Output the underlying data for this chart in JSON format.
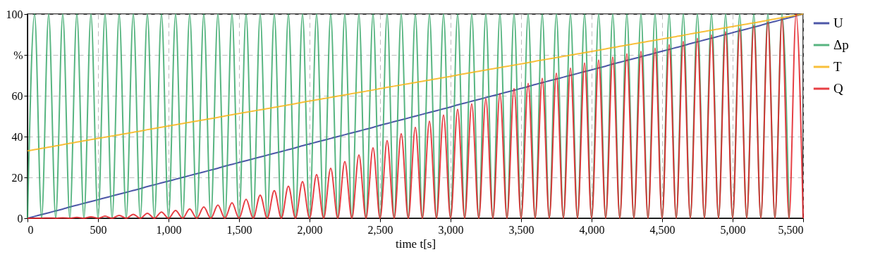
{
  "chart_data": {
    "type": "line",
    "xlabel": "time t[s]",
    "legend": "right",
    "grid": true,
    "x": [
      0,
      50,
      100,
      150,
      200,
      250,
      300,
      350,
      400,
      450,
      500,
      550,
      600,
      650,
      700,
      750,
      800,
      850,
      900,
      950,
      1000,
      1050,
      1100,
      1150,
      1200,
      1250,
      1300,
      1350,
      1400,
      1450,
      1500,
      1550,
      1600,
      1650,
      1700,
      1750,
      1800,
      1850,
      1900,
      1950,
      2000,
      2050,
      2100,
      2150,
      2200,
      2250,
      2300,
      2350,
      2400,
      2450,
      2500,
      2550,
      2600,
      2650,
      2700,
      2750,
      2800,
      2850,
      2900,
      2950,
      3000,
      3050,
      3100,
      3150,
      3200,
      3250,
      3300,
      3350,
      3400,
      3450,
      3500,
      3550,
      3600,
      3650,
      3700,
      3750,
      3800,
      3850,
      3900,
      3950,
      4000,
      4050,
      4100,
      4150,
      4200,
      4250,
      4300,
      4350,
      4400,
      4450,
      4500,
      4550,
      4600,
      4650,
      4700,
      4750,
      4800,
      4850,
      4900,
      4950,
      5000,
      5050,
      5100,
      5150,
      5200,
      5250,
      5300,
      5350,
      5400,
      5450,
      5500
    ],
    "series": [
      {
        "name": "U",
        "color": "#2e3a98",
        "values": [
          0,
          0.9,
          1.8,
          2.7,
          3.6,
          4.5,
          5.5,
          6.4,
          7.3,
          8.2,
          9.1,
          10,
          10.9,
          11.8,
          12.7,
          13.6,
          14.5,
          15.5,
          16.4,
          17.3,
          18.2,
          19.1,
          20,
          20.9,
          21.8,
          22.7,
          23.6,
          24.5,
          25.5,
          26.4,
          27.3,
          28.2,
          29.1,
          30,
          30.9,
          31.8,
          32.7,
          33.6,
          34.5,
          35.5,
          36.4,
          37.3,
          38.2,
          39.1,
          40,
          40.9,
          41.8,
          42.7,
          43.6,
          44.5,
          45.5,
          46.4,
          47.3,
          48.2,
          49.1,
          50,
          50.9,
          51.8,
          52.7,
          53.6,
          54.5,
          55.5,
          56.4,
          57.3,
          58.2,
          59.1,
          60,
          60.9,
          61.8,
          62.7,
          63.6,
          64.5,
          65.5,
          66.4,
          67.3,
          68.2,
          69.1,
          70,
          70.9,
          71.8,
          72.7,
          73.6,
          74.5,
          75.5,
          76.4,
          77.3,
          78.2,
          79.1,
          80,
          80.9,
          81.8,
          82.7,
          83.6,
          84.5,
          85.5,
          86.4,
          87.3,
          88.2,
          89.1,
          90,
          90.9,
          91.8,
          92.7,
          93.6,
          94.5,
          95.5,
          96.4,
          97.3,
          98.2,
          99.1,
          100
        ]
      },
      {
        "name": "Δp",
        "color": "#3aa86b",
        "values": [
          0,
          100,
          0,
          100,
          0,
          100,
          0,
          100,
          0,
          100,
          0,
          100,
          0,
          100,
          0,
          100,
          0,
          100,
          0,
          100,
          0,
          100,
          0,
          100,
          0,
          100,
          0,
          100,
          0,
          100,
          0,
          100,
          0,
          100,
          0,
          100,
          0,
          100,
          0,
          100,
          0,
          100,
          0,
          100,
          0,
          100,
          0,
          100,
          0,
          100,
          0,
          100,
          0,
          100,
          0,
          100,
          0,
          100,
          0,
          100,
          0,
          100,
          0,
          100,
          0,
          100,
          0,
          100,
          0,
          100,
          0,
          100,
          0,
          100,
          0,
          100,
          0,
          100,
          0,
          100,
          0,
          100,
          0,
          100,
          0,
          100,
          0,
          100,
          0,
          100,
          0,
          100,
          0,
          100,
          0,
          100,
          0,
          100,
          0,
          100,
          0,
          100,
          0,
          100,
          0,
          100,
          0,
          100,
          0,
          null,
          null
        ]
      },
      {
        "name": "T",
        "color": "#f7b519",
        "values": [
          33,
          33.6,
          34.2,
          34.8,
          35.4,
          36,
          36.7,
          37.3,
          37.9,
          38.5,
          39.1,
          39.7,
          40.3,
          40.9,
          41.5,
          42.1,
          42.7,
          43.4,
          44,
          44.6,
          45.2,
          45.8,
          46.4,
          47,
          47.6,
          48.2,
          48.8,
          49.4,
          50.1,
          50.7,
          51.3,
          51.9,
          52.5,
          53.1,
          53.7,
          54.3,
          54.9,
          55.5,
          56.1,
          56.8,
          57.4,
          58,
          58.6,
          59.2,
          59.8,
          60.4,
          61,
          61.6,
          62.2,
          62.8,
          63.5,
          64.1,
          64.7,
          65.3,
          65.9,
          66.5,
          67.1,
          67.7,
          68.3,
          68.9,
          69.5,
          70.2,
          70.8,
          71.4,
          72,
          72.6,
          73.2,
          73.8,
          74.4,
          75,
          75.6,
          76.2,
          76.9,
          77.5,
          78.1,
          78.7,
          79.3,
          79.9,
          80.5,
          81.1,
          81.7,
          82.3,
          82.9,
          83.6,
          84.2,
          84.8,
          85.4,
          86,
          86.6,
          87.2,
          87.8,
          88.4,
          89,
          89.6,
          90.3,
          90.9,
          91.5,
          92.1,
          92.7,
          93.3,
          93.9,
          94.5,
          95.1,
          95.7,
          96.3,
          97,
          97.6,
          98.2,
          98.8,
          99.4,
          100
        ]
      },
      {
        "name": "Q",
        "color": "#e31e24",
        "values": [
          0,
          0,
          0,
          0.1,
          0,
          0.2,
          0,
          0.4,
          0,
          0.7,
          0,
          1,
          0,
          1.4,
          0,
          1.9,
          0,
          2.4,
          0,
          3,
          0,
          3.8,
          0,
          4.6,
          0,
          5.5,
          0,
          6.5,
          0,
          7.6,
          0,
          9.3,
          0,
          11.3,
          0,
          13.5,
          0,
          15.7,
          0,
          17.9,
          0,
          21.4,
          0,
          24.5,
          0,
          27.8,
          0,
          31,
          0,
          34.5,
          0,
          38,
          0,
          41.4,
          0,
          44.5,
          0,
          47.5,
          0,
          50.5,
          0,
          53.4,
          0,
          56,
          0,
          58.5,
          0,
          61,
          0,
          63.5,
          0,
          66,
          0,
          68.5,
          0,
          71,
          0,
          73.5,
          0,
          76,
          0,
          77.5,
          0,
          79,
          0,
          80.5,
          0,
          81.7,
          0,
          83.3,
          0,
          85,
          0,
          86.6,
          0,
          88.2,
          0,
          89.8,
          0,
          91.4,
          0,
          93,
          0,
          94.6,
          0,
          96.2,
          0,
          97.8,
          0,
          100,
          0
        ]
      }
    ],
    "xlim": [
      0,
      5500
    ],
    "xticks": [
      0,
      500,
      {
        "value": 1000,
        "label": "1,000"
      },
      {
        "value": 1500,
        "label": "1,500"
      },
      {
        "value": 2000,
        "label": "2,000"
      },
      {
        "value": 2500,
        "label": "2,500"
      },
      {
        "value": 3000,
        "label": "3,000"
      },
      {
        "value": 3500,
        "label": "3,500"
      },
      {
        "value": 4000,
        "label": "4,000"
      },
      {
        "value": 4500,
        "label": "4,500"
      },
      {
        "value": 5000,
        "label": "5,000"
      },
      {
        "value": 5500,
        "label": "5,500"
      }
    ],
    "ylim": [
      0,
      100
    ],
    "yticks": [
      0,
      20,
      40,
      60,
      {
        "value": 80,
        "label": "%"
      },
      100
    ]
  }
}
